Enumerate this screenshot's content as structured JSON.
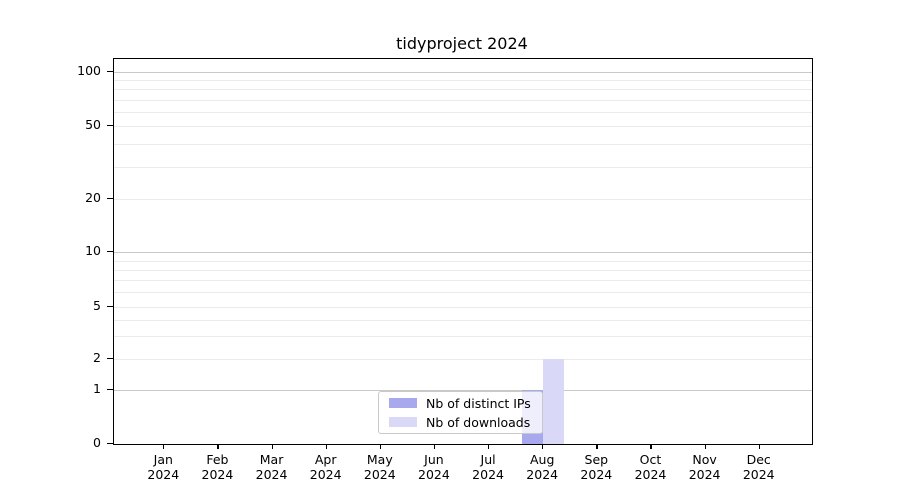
{
  "chart_data": {
    "type": "bar",
    "title": "tidyproject 2024",
    "categories": [
      "Jan 2024",
      "Feb 2024",
      "Mar 2024",
      "Apr 2024",
      "May 2024",
      "Jun 2024",
      "Jul 2024",
      "Aug 2024",
      "Sep 2024",
      "Oct 2024",
      "Nov 2024",
      "Dec 2024"
    ],
    "series": [
      {
        "name": "Nb of distinct IPs",
        "color": "#a8a8ee",
        "values": [
          0,
          0,
          0,
          0,
          0,
          0,
          0,
          1,
          0,
          0,
          0,
          0
        ]
      },
      {
        "name": "Nb of downloads",
        "color": "#d9d9f7",
        "values": [
          0,
          0,
          0,
          0,
          0,
          0,
          0,
          2,
          0,
          0,
          0,
          0
        ]
      }
    ],
    "yticks": [
      0,
      1,
      2,
      5,
      10,
      20,
      50,
      100
    ],
    "yscale": "symlog",
    "ylim": [
      0,
      130
    ],
    "grid": "horizontal-log-minor",
    "grid_major_values": [
      1,
      10,
      100
    ],
    "legend_position": "inside-bottom-center",
    "axis_color": "#000000",
    "grid_major_color": "#c9c9c9",
    "grid_minor_color": "#ebebeb"
  }
}
